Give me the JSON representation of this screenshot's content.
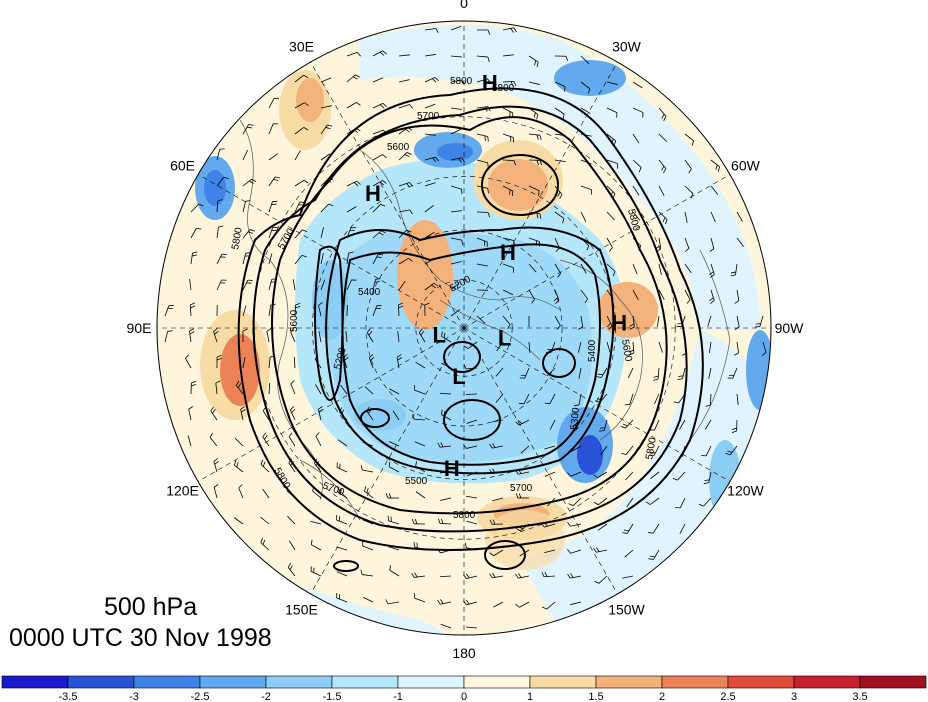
{
  "title": {
    "level": "500 hPa",
    "time": "0000 UTC 30 Nov 1998"
  },
  "meridian_labels": [
    {
      "text": "0",
      "lon": 0
    },
    {
      "text": "30W",
      "lon": -30
    },
    {
      "text": "60W",
      "lon": -60
    },
    {
      "text": "90W",
      "lon": -90
    },
    {
      "text": "120W",
      "lon": -120
    },
    {
      "text": "150W",
      "lon": -150
    },
    {
      "text": "180",
      "lon": 180
    },
    {
      "text": "150E",
      "lon": 150
    },
    {
      "text": "120E",
      "lon": 120
    },
    {
      "text": "90E",
      "lon": 90
    },
    {
      "text": "60E",
      "lon": 60
    },
    {
      "text": "30E",
      "lon": 30
    }
  ],
  "pressure_centers": [
    {
      "text": "H",
      "lon": -6,
      "lat": 22
    },
    {
      "text": "H",
      "lon": 34,
      "lat": 42
    },
    {
      "text": "H",
      "lon": -30,
      "lat": 63
    },
    {
      "text": "H",
      "lon": -88,
      "lat": 44
    },
    {
      "text": "H",
      "lon": 175,
      "lat": 48
    },
    {
      "text": "L",
      "lon": 105,
      "lat": 82
    },
    {
      "text": "L",
      "lon": -103,
      "lat": 77
    },
    {
      "text": "L",
      "lon": 174,
      "lat": 75
    }
  ],
  "contour_labels": [
    "5800",
    "5800",
    "5700",
    "5600",
    "5800",
    "5700",
    "5600",
    "5400",
    "5200",
    "5200",
    "5400",
    "5500",
    "5700",
    "5800",
    "5800",
    "5700",
    "5800",
    "5300",
    "5800",
    "5600"
  ],
  "colorbar": {
    "tick_labels": [
      "-3.5",
      "-3",
      "-2.5",
      "-2",
      "-1.5",
      "-1",
      "0",
      "1",
      "1.5",
      "2",
      "2.5",
      "3",
      "3.5"
    ],
    "colors": [
      "#1a1acc",
      "#2a52d9",
      "#3f83e8",
      "#62a9ee",
      "#8ccdf5",
      "#b6e6fa",
      "#dff4fc",
      "#fdf5dc",
      "#f8dca6",
      "#f3b27c",
      "#ec8258",
      "#e14c3a",
      "#c8202c",
      "#a0101e"
    ]
  },
  "field_colors": {
    "background_inside": "#dff4fc",
    "land_outline": "#555555",
    "contour": "#000000"
  }
}
